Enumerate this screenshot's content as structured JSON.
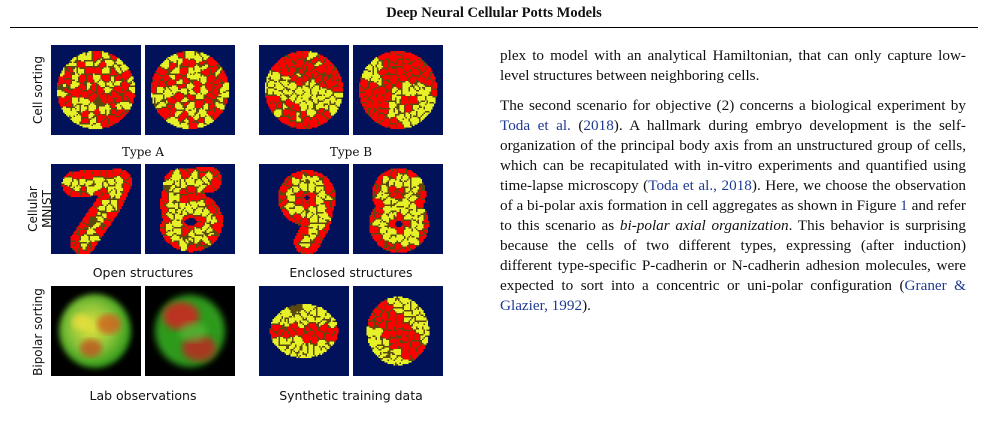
{
  "header": {
    "title": "Deep Neural Cellular Potts Models"
  },
  "figure": {
    "rows": [
      {
        "label": "Cell sorting",
        "captions": [
          "Type A",
          "Type B"
        ]
      },
      {
        "label": "Cellular MNIST",
        "label_lines": [
          "Cellular",
          "MNIST"
        ],
        "captions": [
          "Open structures",
          "Enclosed structures"
        ]
      },
      {
        "label": "Bipolar sorting",
        "captions": [
          "Lab observations",
          "Synthetic training data"
        ]
      }
    ],
    "colors": {
      "red": "#ff0000",
      "yellow": "#e6f227",
      "background": "#02125a",
      "lab_green": "#2f9a1a"
    }
  },
  "body": {
    "p1": "plex to model with an analytical Hamiltonian, that can only capture low-level structures between neighboring cells.",
    "p2_a": "The second scenario for objective (2) concerns a biological experiment by ",
    "p2_cite1": "Toda et al.",
    "p2_b": " (",
    "p2_cite1_year": "2018",
    "p2_c": "). A hallmark during embryo development is the self-organization of the principal body axis from an unstructured group of cells, which can be recapitulated with in-vitro experiments and quantified using time-lapse microscopy (",
    "p2_cite2": "Toda et al., 2018",
    "p2_d": "). Here, we choose the observation of a bi-polar axis formation in cell aggregates as shown in Figure ",
    "p2_fig": "1",
    "p2_e": " and refer to this scenario as ",
    "p2_em": "bi-polar axial organization",
    "p2_f": ". This behavior is surprising because the cells of two different types, expressing (after induction) different type-specific P-cadherin or N-cadherin adhesion molecules, were expected to sort into a concentric or uni-polar configuration (",
    "p2_cite3": "Graner & Glazier, 1992",
    "p2_g": ")."
  }
}
